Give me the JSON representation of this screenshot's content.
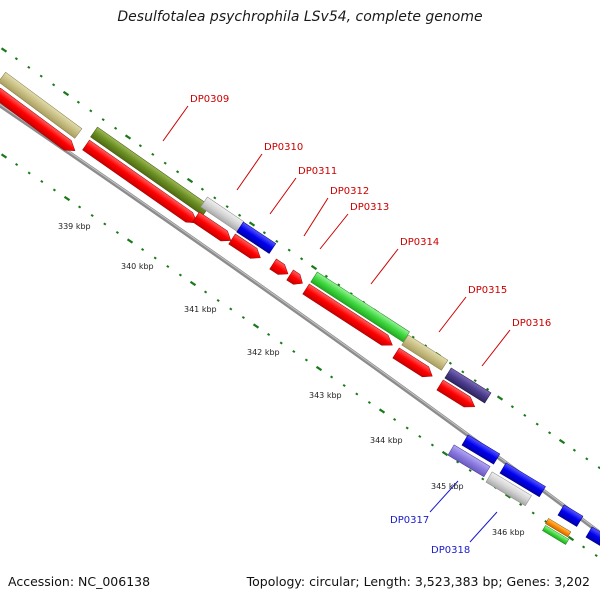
{
  "title": "Desulfotalea psychrophila LSv54, complete genome",
  "footer": {
    "accession": "Accession: NC_006138",
    "summary": "Topology: circular; Length: 3,523,383 bp; Genes: 3,202"
  },
  "colors": {
    "forward_gene": "#ff0000",
    "label_red": "#cc0000",
    "label_blue": "#1a1acc",
    "tick_green": "#1a7a1a",
    "backbone": "#8c8c8c"
  },
  "ruler_labels": [
    "339 kbp",
    "340 kbp",
    "341 kbp",
    "342 kbp",
    "343 kbp",
    "344 kbp",
    "345 kbp",
    "346 kbp"
  ],
  "gene_labels": [
    "DP0309",
    "DP0310",
    "DP0311",
    "DP0312",
    "DP0313",
    "DP0314",
    "DP0315",
    "DP0316",
    "DP0317",
    "DP0318"
  ]
}
